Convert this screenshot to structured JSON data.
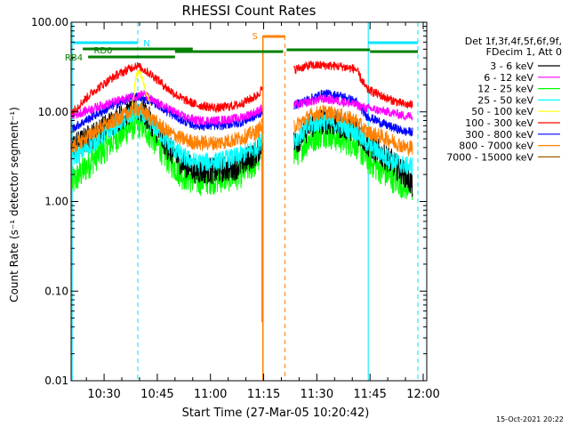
{
  "chart_data": {
    "type": "line",
    "title": "RHESSI Count Rates",
    "xlabel": "Start Time (27-Mar-05 10:20:42)",
    "ylabel": "Count Rate (s⁻¹ detector segment⁻¹)",
    "x_range_minutes": [
      20.7,
      121.0
    ],
    "ylim": [
      0.01,
      100
    ],
    "yscale": "log",
    "x_ticks": [
      {
        "minute": 30,
        "label": "10:30"
      },
      {
        "minute": 45,
        "label": "10:45"
      },
      {
        "minute": 60,
        "label": "11:00"
      },
      {
        "minute": 75,
        "label": "11:15"
      },
      {
        "minute": 90,
        "label": "11:30"
      },
      {
        "minute": 105,
        "label": "11:45"
      },
      {
        "minute": 120,
        "label": "12:00"
      }
    ],
    "y_ticks": [
      {
        "value": 0.01,
        "label": "0.01"
      },
      {
        "value": 0.1,
        "label": "0.10"
      },
      {
        "value": 1,
        "label": "1.00"
      },
      {
        "value": 10,
        "label": "10.00"
      },
      {
        "value": 100,
        "label": "100.00"
      }
    ],
    "legend_header": [
      "Det 1f,3f,4f,5f,6f,9f,",
      "FDecim 1, Att 0"
    ],
    "series": [
      {
        "name": "3 - 6 keV",
        "color": "#000000",
        "points": [
          [
            21,
            4.0
          ],
          [
            27,
            5.5
          ],
          [
            33,
            8
          ],
          [
            39,
            11
          ],
          [
            41,
            10
          ],
          [
            44,
            7
          ],
          [
            48,
            4
          ],
          [
            52,
            2.7
          ],
          [
            56,
            2.2
          ],
          [
            62,
            2.2
          ],
          [
            68,
            2.5
          ],
          [
            73,
            3.5
          ],
          [
            74.5,
            4.5
          ],
          [
            84,
            4.5
          ],
          [
            88,
            7
          ],
          [
            92,
            8
          ],
          [
            97,
            7
          ],
          [
            101,
            6.5
          ],
          [
            104,
            4.5
          ],
          [
            110,
            3
          ],
          [
            115,
            2
          ],
          [
            117,
            1.5
          ]
        ]
      },
      {
        "name": "6 - 12 keV",
        "color": "#ff00ff",
        "points": [
          [
            21,
            9
          ],
          [
            27,
            11
          ],
          [
            33,
            13
          ],
          [
            39,
            15
          ],
          [
            41,
            16
          ],
          [
            44,
            13
          ],
          [
            48,
            11
          ],
          [
            52,
            9
          ],
          [
            56,
            8
          ],
          [
            62,
            8
          ],
          [
            68,
            8.5
          ],
          [
            73,
            10
          ],
          [
            74.5,
            11
          ],
          [
            84,
            12
          ],
          [
            88,
            13
          ],
          [
            92,
            14
          ],
          [
            97,
            13
          ],
          [
            101,
            12
          ],
          [
            104,
            11
          ],
          [
            110,
            10
          ],
          [
            115,
            9
          ],
          [
            117,
            9
          ]
        ]
      },
      {
        "name": "12 - 25 keV",
        "color": "#00ff00",
        "points": [
          [
            21,
            1.6
          ],
          [
            27,
            3
          ],
          [
            33,
            5
          ],
          [
            39,
            7.5
          ],
          [
            41,
            7
          ],
          [
            44,
            5
          ],
          [
            48,
            3
          ],
          [
            52,
            2
          ],
          [
            56,
            1.7
          ],
          [
            62,
            1.8
          ],
          [
            68,
            2
          ],
          [
            73,
            2.8
          ],
          [
            74.5,
            3.5
          ],
          [
            84,
            3.5
          ],
          [
            88,
            5
          ],
          [
            92,
            6
          ],
          [
            97,
            5
          ],
          [
            101,
            4.5
          ],
          [
            104,
            3
          ],
          [
            110,
            2
          ],
          [
            115,
            1.5
          ],
          [
            117,
            1.4
          ]
        ]
      },
      {
        "name": "25 - 50 keV",
        "color": "#00ffff",
        "points": [
          [
            21,
            3
          ],
          [
            27,
            4.5
          ],
          [
            33,
            7
          ],
          [
            39,
            10
          ],
          [
            41,
            9
          ],
          [
            44,
            7
          ],
          [
            48,
            4.5
          ],
          [
            52,
            3.2
          ],
          [
            56,
            2.7
          ],
          [
            62,
            2.8
          ],
          [
            68,
            3.2
          ],
          [
            73,
            4
          ],
          [
            74.5,
            5
          ],
          [
            84,
            5
          ],
          [
            88,
            7
          ],
          [
            92,
            8
          ],
          [
            97,
            7
          ],
          [
            101,
            6
          ],
          [
            104,
            4.5
          ],
          [
            110,
            3
          ],
          [
            115,
            2.5
          ],
          [
            117,
            2.5
          ]
        ]
      },
      {
        "name": "50 - 100 keV",
        "color": "#ffff00",
        "points": [
          [
            38,
            12
          ],
          [
            39,
            25
          ],
          [
            40,
            28
          ],
          [
            41,
            22
          ],
          [
            42,
            16
          ],
          [
            43,
            12
          ]
        ]
      },
      {
        "name": "100 - 300 keV",
        "color": "#ff0000",
        "points": [
          [
            21,
            10
          ],
          [
            27,
            17
          ],
          [
            33,
            25
          ],
          [
            39,
            33
          ],
          [
            41,
            30
          ],
          [
            44,
            25
          ],
          [
            48,
            18
          ],
          [
            52,
            14
          ],
          [
            56,
            12
          ],
          [
            62,
            11
          ],
          [
            68,
            12
          ],
          [
            73,
            15
          ],
          [
            74.5,
            18
          ],
          [
            84,
            30
          ],
          [
            88,
            33
          ],
          [
            92,
            33
          ],
          [
            97,
            32
          ],
          [
            101,
            30
          ],
          [
            104,
            18
          ],
          [
            110,
            14
          ],
          [
            115,
            12
          ],
          [
            117,
            12
          ]
        ]
      },
      {
        "name": "300 - 800 keV",
        "color": "#0000ff",
        "points": [
          [
            21,
            6.5
          ],
          [
            27,
            9
          ],
          [
            33,
            12
          ],
          [
            39,
            15
          ],
          [
            41,
            14
          ],
          [
            44,
            13
          ],
          [
            48,
            10
          ],
          [
            52,
            8
          ],
          [
            56,
            7
          ],
          [
            62,
            7
          ],
          [
            68,
            7.5
          ],
          [
            73,
            9
          ],
          [
            74.5,
            10
          ],
          [
            84,
            12
          ],
          [
            88,
            14
          ],
          [
            92,
            16
          ],
          [
            97,
            15
          ],
          [
            101,
            13
          ],
          [
            104,
            9
          ],
          [
            110,
            7
          ],
          [
            115,
            6
          ],
          [
            117,
            6
          ]
        ]
      },
      {
        "name": "800 - 7000 keV",
        "color": "#ff8000",
        "points": [
          [
            21,
            4
          ],
          [
            27,
            6
          ],
          [
            33,
            8
          ],
          [
            39,
            11
          ],
          [
            41,
            10
          ],
          [
            44,
            8
          ],
          [
            48,
            6
          ],
          [
            52,
            5
          ],
          [
            56,
            4.5
          ],
          [
            62,
            4.5
          ],
          [
            68,
            5
          ],
          [
            73,
            6
          ],
          [
            74.5,
            7
          ],
          [
            84,
            7
          ],
          [
            88,
            9
          ],
          [
            92,
            10
          ],
          [
            97,
            9
          ],
          [
            101,
            8
          ],
          [
            104,
            6
          ],
          [
            110,
            5
          ],
          [
            115,
            4
          ],
          [
            117,
            4
          ]
        ]
      },
      {
        "name": "7000 - 15000 keV",
        "color": "#a06000",
        "points": []
      }
    ],
    "markers": {
      "n_label": "N",
      "s_label": "S",
      "rd0_label": "RD0",
      "rb4_label": "RB4"
    }
  },
  "footer": {
    "date": "15-Oct-2021 20:22"
  }
}
